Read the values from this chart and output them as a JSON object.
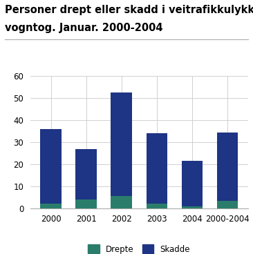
{
  "title_line1": "Personer drept eller skadd i veitrafikkulykker med",
  "title_line2": "vogntog. Januar. 2000-2004",
  "categories": [
    "2000",
    "2001",
    "2002",
    "2003",
    "2004",
    "2000-2004"
  ],
  "drepte": [
    2,
    4,
    5.5,
    2,
    1,
    3.5
  ],
  "skadde": [
    34,
    23,
    47,
    32,
    20.5,
    31
  ],
  "color_drepte": "#2a7d6b",
  "color_skadde": "#1e3484",
  "ylim": [
    0,
    60
  ],
  "yticks": [
    0,
    10,
    20,
    30,
    40,
    50,
    60
  ],
  "legend_drepte": "Drepte",
  "legend_skadde": "Skadde",
  "title_fontsize": 10.5,
  "tick_fontsize": 8.5,
  "background_color": "#ffffff",
  "grid_color": "#d0d0d0"
}
